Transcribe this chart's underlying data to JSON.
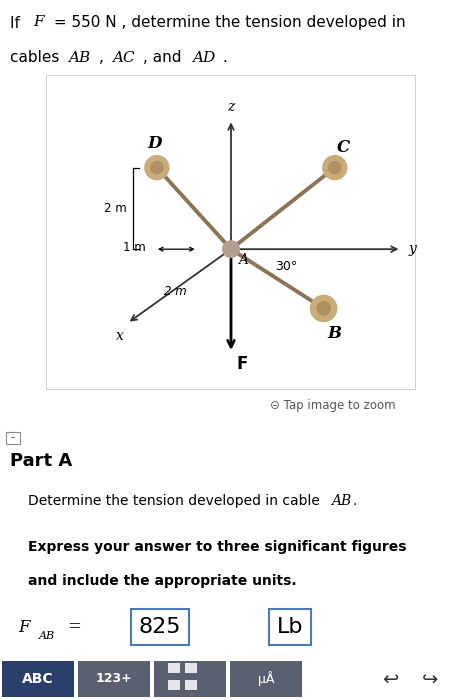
{
  "page_bg": "#ffffff",
  "diagram_bg": "#f8f8f8",
  "cable_color": "#8B7355",
  "axis_color": "#555555",
  "answer_box_border": "#4a7ab5",
  "answer_value": "825",
  "answer_units": "Lb",
  "toolbar_bg": "#3d5a8a",
  "angle_label": "30°",
  "dim_1m": "1 m",
  "dim_2m_vert": "2 m",
  "dim_2m_horiz": "2 m",
  "label_A": "A",
  "label_B": "B",
  "label_C": "C",
  "label_D": "D",
  "label_x": "x",
  "label_y": "y",
  "label_z": "z",
  "label_F": "F",
  "title_line1": "If ",
  "title_F": "F",
  "title_rest": " = 550 N , determine the tension developed in",
  "title_line2a": "cables ",
  "title_line2b": "AB",
  "title_line2c": ", ",
  "title_line2d": "AC",
  "title_line2e": ", and ",
  "title_line2f": "AD",
  "title_line2g": ".",
  "part_a_label": "Part A",
  "part_a_sub": "Determine the tension developed in cable ",
  "part_a_sub_italic": "AB",
  "part_a_sub_end": ".",
  "part_a_bold1": "Express your answer to three significant figures",
  "part_a_bold2": "and include the appropriate units.",
  "fab_text": "F",
  "fab_sub": "AB",
  "fab_eq": " = ",
  "tap_text": "Tap image to zoom"
}
